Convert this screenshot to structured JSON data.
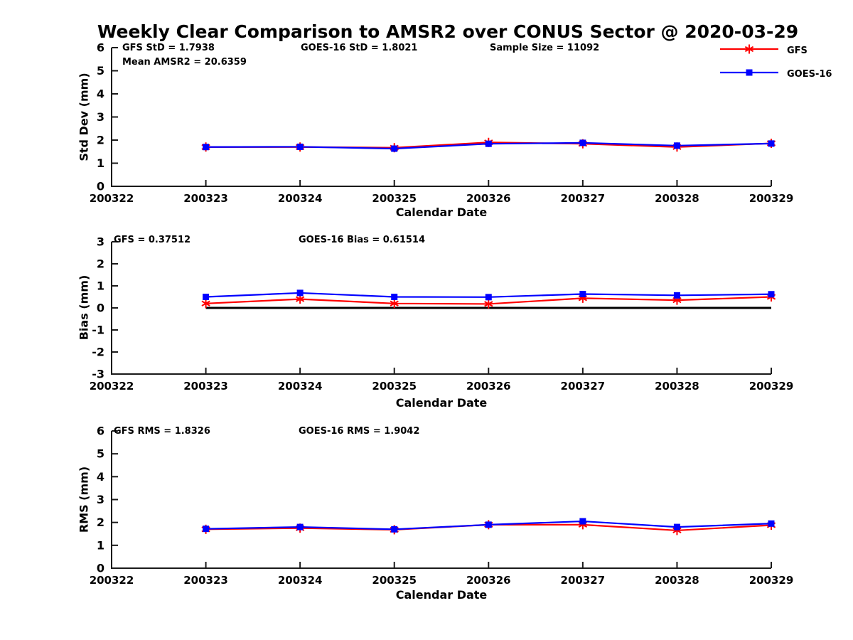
{
  "title": "Weekly Clear Comparison to AMSR2 over CONUS Sector @ 2020-03-29",
  "legend": {
    "items": [
      {
        "label": "GFS",
        "color": "#ff0000",
        "marker": "asterisk"
      },
      {
        "label": "GOES-16",
        "color": "#0000ff",
        "marker": "square"
      }
    ]
  },
  "axis_color": "#1a1a1a",
  "zero_line_color": "#000000",
  "chart_data": [
    {
      "type": "line",
      "ylabel": "Std Dev (mm)",
      "xlabel": "Calendar Date",
      "ylim": [
        0,
        6
      ],
      "yticks": [
        0,
        1,
        2,
        3,
        4,
        5,
        6
      ],
      "xticklabels": [
        "200322",
        "200323",
        "200324",
        "200325",
        "200326",
        "200327",
        "200328",
        "200329"
      ],
      "x_dates": [
        "200323",
        "200324",
        "200325",
        "200326",
        "200327",
        "200328",
        "200329"
      ],
      "annotations": [
        "GFS StD = 1.7938",
        "Mean AMSR2 = 20.6359",
        "GOES-16 StD = 1.8021",
        "Sample Size = 11092"
      ],
      "series": [
        {
          "name": "GFS",
          "color": "#ff0000",
          "marker": "asterisk",
          "values": [
            1.7,
            1.7,
            1.67,
            1.9,
            1.84,
            1.7,
            1.86
          ]
        },
        {
          "name": "GOES-16",
          "color": "#0000ff",
          "marker": "square",
          "values": [
            1.7,
            1.71,
            1.63,
            1.84,
            1.88,
            1.76,
            1.85
          ]
        }
      ]
    },
    {
      "type": "line",
      "ylabel": "Bias (mm)",
      "xlabel": "Calendar Date",
      "ylim": [
        -3,
        3
      ],
      "yticks": [
        -3,
        -2,
        -1,
        0,
        1,
        2,
        3
      ],
      "xticklabels": [
        "200322",
        "200323",
        "200324",
        "200325",
        "200326",
        "200327",
        "200328",
        "200329"
      ],
      "x_dates": [
        "200323",
        "200324",
        "200325",
        "200326",
        "200327",
        "200328",
        "200329"
      ],
      "annotations": [
        "GFS = 0.37512",
        "GOES-16 Bias  = 0.61514"
      ],
      "zero_line": {
        "y": 0
      },
      "series": [
        {
          "name": "GFS",
          "color": "#ff0000",
          "marker": "asterisk",
          "values": [
            0.2,
            0.4,
            0.2,
            0.18,
            0.44,
            0.35,
            0.5
          ]
        },
        {
          "name": "GOES-16",
          "color": "#0000ff",
          "marker": "square",
          "values": [
            0.5,
            0.68,
            0.5,
            0.49,
            0.63,
            0.57,
            0.62
          ]
        }
      ]
    },
    {
      "type": "line",
      "ylabel": "RMS (mm)",
      "xlabel": "Calendar Date",
      "ylim": [
        0,
        6
      ],
      "yticks": [
        0,
        1,
        2,
        3,
        4,
        5,
        6
      ],
      "xticklabels": [
        "200322",
        "200323",
        "200324",
        "200325",
        "200326",
        "200327",
        "200328",
        "200329"
      ],
      "x_dates": [
        "200323",
        "200324",
        "200325",
        "200326",
        "200327",
        "200328",
        "200329"
      ],
      "annotations": [
        "GFS RMS = 1.8326",
        "GOES-16 RMS = 1.9042"
      ],
      "series": [
        {
          "name": "GFS",
          "color": "#ff0000",
          "marker": "asterisk",
          "values": [
            1.7,
            1.75,
            1.68,
            1.9,
            1.9,
            1.65,
            1.88
          ]
        },
        {
          "name": "GOES-16",
          "color": "#0000ff",
          "marker": "square",
          "values": [
            1.72,
            1.8,
            1.7,
            1.9,
            2.05,
            1.8,
            1.95
          ]
        }
      ]
    }
  ]
}
